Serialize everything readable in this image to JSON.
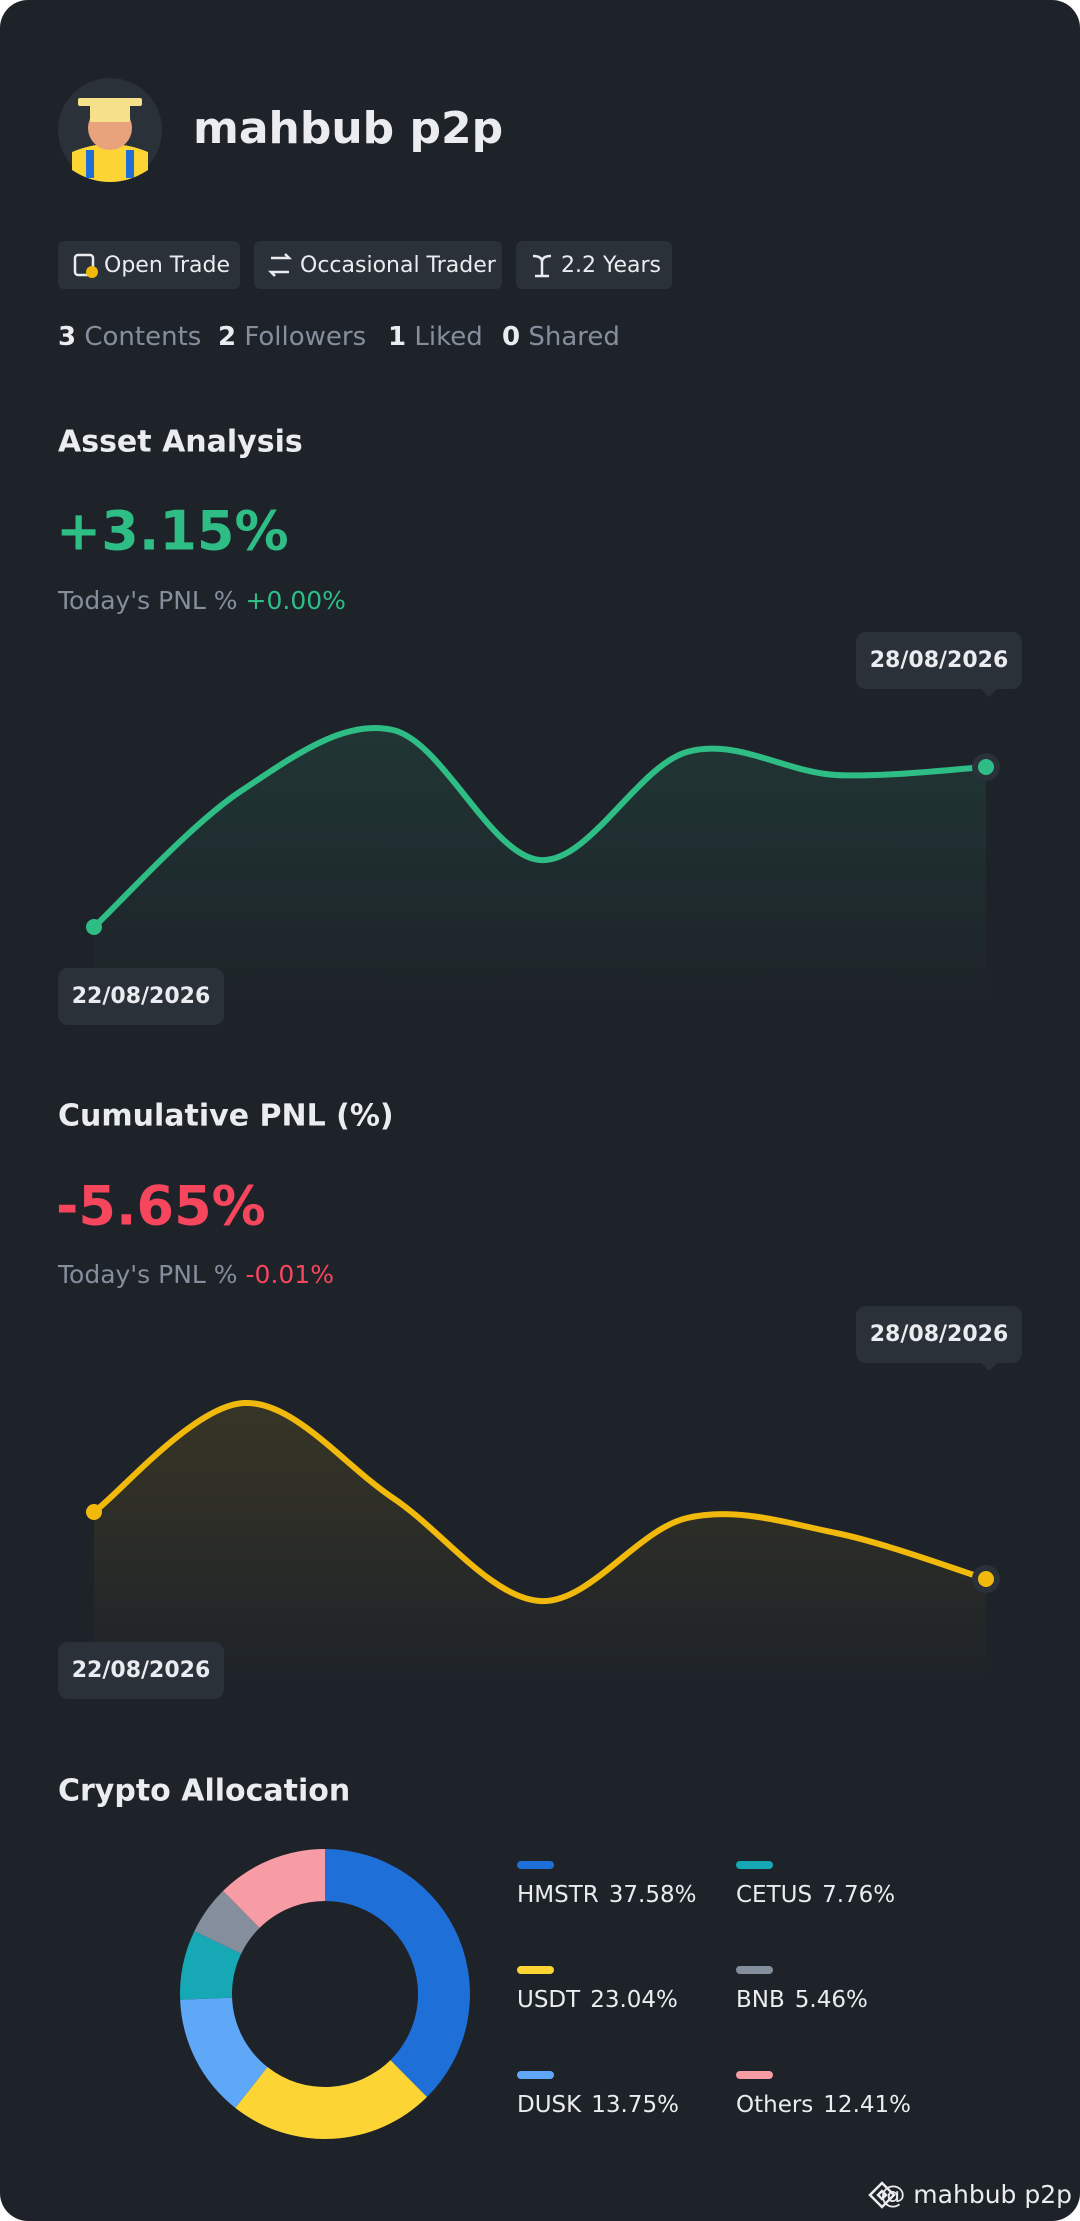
{
  "profile": {
    "name": "mahbub p2p",
    "tags": [
      "Open Trade",
      "Occasional Trader",
      "2.2 Years"
    ],
    "stats": [
      {
        "value": 3,
        "label": "Contents"
      },
      {
        "value": 2,
        "label": "Followers"
      },
      {
        "value": 1,
        "label": "Liked"
      },
      {
        "value": 0,
        "label": "Shared"
      }
    ]
  },
  "asset_analysis": {
    "title": "Asset Analysis",
    "value": "+3.15%",
    "today_label": "Today's PNL %",
    "today_value": "+0.00%",
    "start_date": "22/08/2026",
    "end_date": "28/08/2026"
  },
  "cumulative_pnl": {
    "title": "Cumulative PNL (%)",
    "value": "-5.65%",
    "today_label": "Today's PNL %",
    "today_value": "-0.01%",
    "start_date": "22/08/2026",
    "end_date": "28/08/2026"
  },
  "chart_data": {
    "type": "donut",
    "title": "Crypto Allocation",
    "categories": [
      "HMSTR",
      "USDT",
      "DUSK",
      "CETUS",
      "BNB",
      "Others"
    ],
    "values": [
      37.58,
      23.04,
      13.75,
      7.76,
      5.46,
      12.41
    ],
    "value_labels": [
      "37.58%",
      "23.04%",
      "13.75%",
      "7.76%",
      "5.46%",
      "12.41%"
    ],
    "colors": [
      "#1f6fd8",
      "#fcd535",
      "#5ea8f7",
      "#16a9b5",
      "#848e9c",
      "#f79ca4"
    ]
  },
  "watermark": "@ mahbub p2p"
}
